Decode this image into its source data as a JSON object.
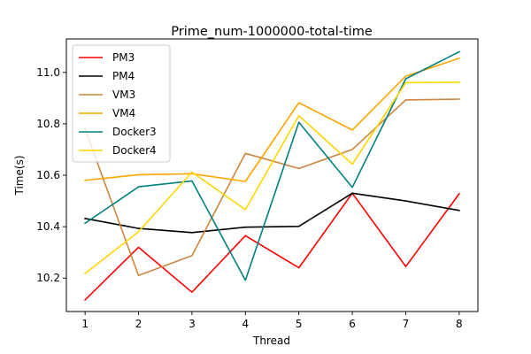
{
  "chart_data": {
    "type": "line",
    "title": "Prime_num-1000000-total-time",
    "xlabel": "Thread",
    "ylabel": "Time(s)",
    "x": [
      1,
      2,
      3,
      4,
      5,
      6,
      7,
      8
    ],
    "xlim": [
      0.65,
      8.35
    ],
    "ylim": [
      10.07,
      11.13
    ],
    "xticks": [
      "1",
      "2",
      "3",
      "4",
      "5",
      "6",
      "7",
      "8"
    ],
    "yticks": [
      "10.2",
      "10.4",
      "10.6",
      "10.8",
      "11.0"
    ],
    "grid": false,
    "legend_position": "top-left",
    "series": [
      {
        "name": "PM3",
        "color": "#ff0000",
        "values": [
          10.115,
          10.32,
          10.145,
          10.365,
          10.24,
          10.53,
          10.245,
          10.528
        ]
      },
      {
        "name": "PM4",
        "color": "#000000",
        "values": [
          10.432,
          10.393,
          10.377,
          10.398,
          10.401,
          10.53,
          10.5,
          10.463
        ]
      },
      {
        "name": "VM3",
        "color": "#cd853f",
        "values": [
          10.78,
          10.21,
          10.287,
          10.685,
          10.626,
          10.7,
          10.893,
          10.896
        ]
      },
      {
        "name": "VM4",
        "color": "#ffa500",
        "values": [
          10.58,
          10.602,
          10.606,
          10.576,
          10.882,
          10.776,
          10.985,
          11.055
        ]
      },
      {
        "name": "Docker3",
        "color": "#008080",
        "values": [
          10.413,
          10.555,
          10.578,
          10.192,
          10.806,
          10.553,
          10.975,
          11.08
        ]
      },
      {
        "name": "Docker4",
        "color": "#ffd700",
        "values": [
          10.218,
          10.38,
          10.612,
          10.466,
          10.832,
          10.643,
          10.96,
          10.962
        ]
      }
    ]
  }
}
